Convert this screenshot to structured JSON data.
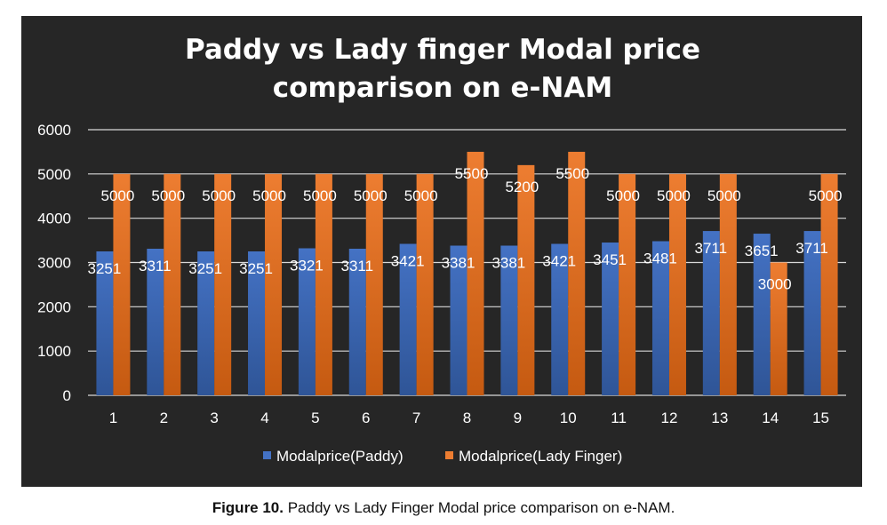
{
  "chart_data": {
    "type": "bar",
    "title_lines": [
      "Paddy vs Lady finger Modal price",
      "comparison on e-NAM"
    ],
    "categories": [
      "1",
      "2",
      "3",
      "4",
      "5",
      "6",
      "7",
      "8",
      "9",
      "10",
      "11",
      "12",
      "13",
      "14",
      "15"
    ],
    "series": [
      {
        "name": "Modalprice(Paddy)",
        "color": "#4472c4",
        "color_dark": "#2f5597",
        "values": [
          3251,
          3311,
          3251,
          3251,
          3321,
          3311,
          3421,
          3381,
          3381,
          3421,
          3451,
          3481,
          3711,
          3651,
          3711
        ],
        "labels": [
          "3251",
          "3311",
          "3251",
          "3251",
          "3321",
          "3311",
          "3421",
          "3381",
          "3381",
          "3421",
          "3451",
          "3481",
          "3711",
          "3651",
          "3711"
        ]
      },
      {
        "name": "Modalprice(Lady Finger)",
        "color": "#ed7d31",
        "color_dark": "#c55a11",
        "values": [
          5000,
          5000,
          5000,
          5000,
          5000,
          5000,
          5000,
          5500,
          5200,
          5500,
          5000,
          5000,
          5000,
          3000,
          5000
        ],
        "labels": [
          "5000",
          "5000",
          "5000",
          "5000",
          "5000",
          "5000",
          "5000",
          "5500",
          "5200",
          "5500",
          "5000",
          "5000",
          "5000",
          "3000",
          "5000"
        ]
      }
    ],
    "y_ticks": [
      "0",
      "1000",
      "2000",
      "3000",
      "4000",
      "5000",
      "6000"
    ],
    "ylim": [
      0,
      6000
    ],
    "grid": true,
    "legend": "bottom",
    "background": "#262626"
  },
  "caption": {
    "label": "Figure 10.",
    "text": " Paddy vs Lady Finger Modal price comparison on e-NAM."
  }
}
